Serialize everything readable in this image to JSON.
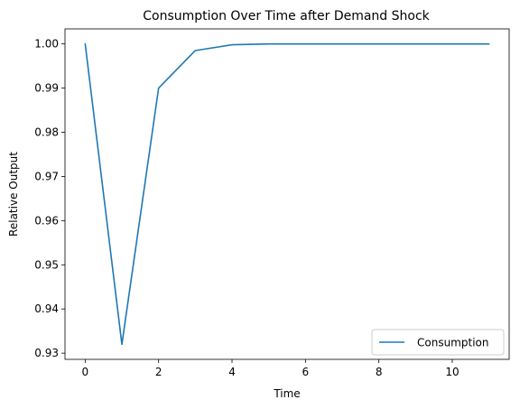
{
  "chart_data": {
    "type": "line",
    "title": "Consumption Over Time after Demand Shock",
    "xlabel": "Time",
    "ylabel": "Relative Output",
    "xlim": [
      -0.55,
      11.55
    ],
    "ylim": [
      0.9286,
      1.0034
    ],
    "xticks": [
      0,
      2,
      4,
      6,
      8,
      10
    ],
    "yticks": [
      0.93,
      0.94,
      0.95,
      0.96,
      0.97,
      0.98,
      0.99,
      1.0
    ],
    "ytick_labels": [
      "0.93",
      "0.94",
      "0.95",
      "0.96",
      "0.97",
      "0.98",
      "0.99",
      "1.00"
    ],
    "grid": false,
    "legend_position": "lower-right",
    "series": [
      {
        "name": "Consumption",
        "color": "#1f77b4",
        "x": [
          0,
          1,
          2,
          3,
          4,
          5,
          6,
          7,
          8,
          9,
          10,
          11
        ],
        "y": [
          1.0,
          0.932,
          0.99,
          0.9985,
          0.9998,
          1.0,
          1.0,
          1.0,
          1.0,
          1.0,
          1.0,
          1.0
        ]
      }
    ]
  }
}
